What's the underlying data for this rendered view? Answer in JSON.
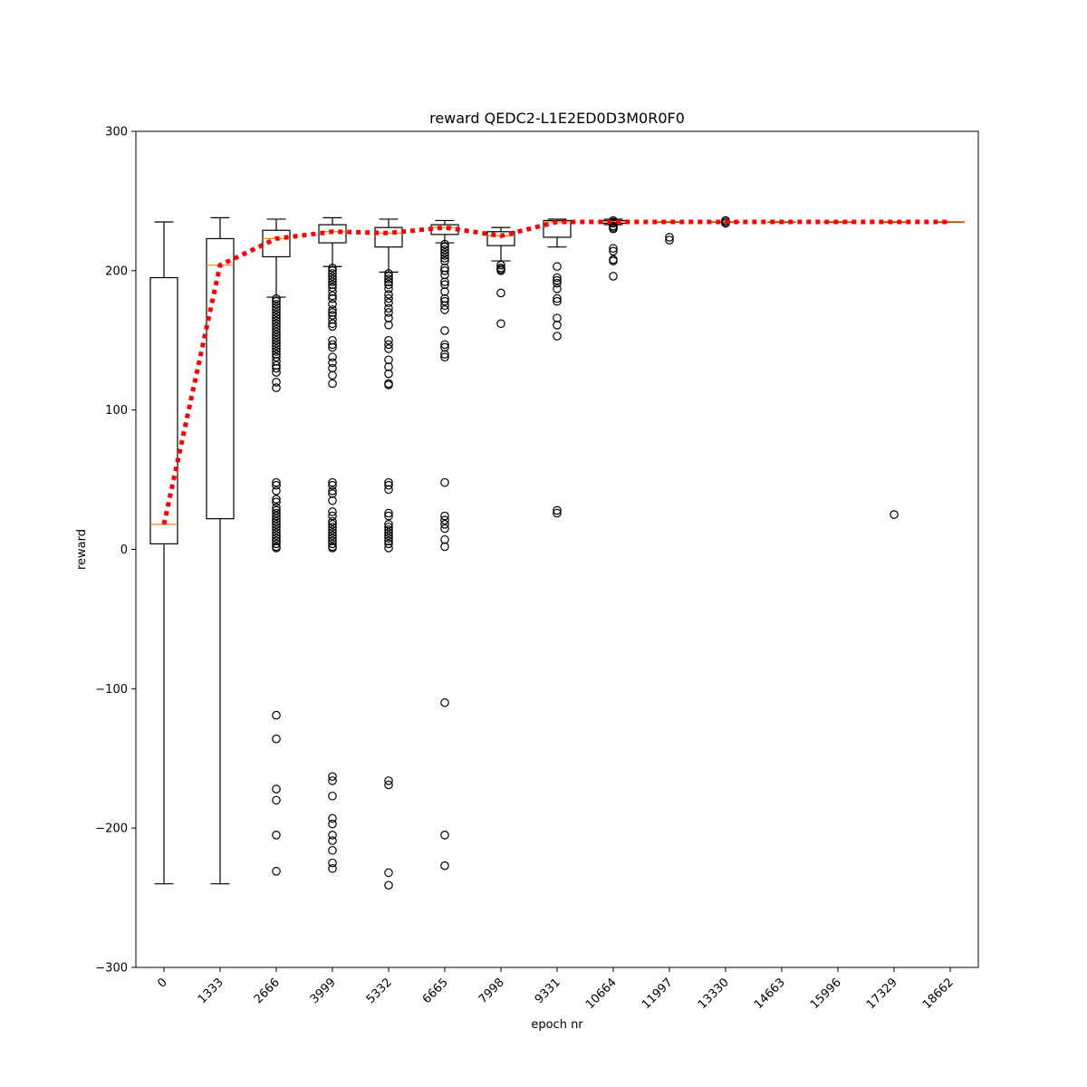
{
  "chart_data": {
    "type": "box",
    "title": "reward QEDC2-L1E2ED0D3M0R0F0",
    "xlabel": "epoch nr",
    "ylabel": "reward",
    "ylim": [
      -300,
      300
    ],
    "yticks": [
      -300,
      -200,
      -100,
      0,
      100,
      200,
      300
    ],
    "ytick_labels": [
      "−300",
      "−200",
      "−100",
      "0",
      "100",
      "200",
      "300"
    ],
    "categories": [
      "0",
      "1333",
      "2666",
      "3999",
      "5332",
      "6665",
      "7998",
      "9331",
      "10664",
      "11997",
      "13330",
      "14663",
      "15996",
      "17329",
      "18662"
    ],
    "boxes": [
      {
        "q1": 4,
        "median": 18,
        "q3": 195,
        "whisker_low": -240,
        "whisker_high": 235,
        "outliers": []
      },
      {
        "q1": 22,
        "median": 204,
        "q3": 223,
        "whisker_low": -240,
        "whisker_high": 238,
        "outliers": []
      },
      {
        "q1": 210,
        "median": 223,
        "q3": 229,
        "whisker_low": 181,
        "whisker_high": 237,
        "outliers": [
          180,
          178,
          176,
          174,
          172,
          170,
          168,
          166,
          164,
          162,
          160,
          158,
          156,
          154,
          152,
          150,
          148,
          146,
          144,
          142,
          140,
          138,
          135,
          132,
          130,
          127,
          120,
          116,
          48,
          46,
          42,
          36,
          34,
          30,
          28,
          26,
          24,
          22,
          20,
          18,
          16,
          14,
          12,
          10,
          8,
          6,
          4,
          2,
          1,
          -119,
          -136,
          -172,
          -180,
          -205,
          -231
        ]
      },
      {
        "q1": 220,
        "median": 228,
        "q3": 233,
        "whisker_low": 203,
        "whisker_high": 238,
        "outliers": [
          202,
          200,
          198,
          196,
          194,
          192,
          190,
          188,
          185,
          182,
          180,
          176,
          172,
          170,
          168,
          165,
          162,
          160,
          150,
          147,
          145,
          138,
          134,
          130,
          125,
          119,
          48,
          46,
          42,
          40,
          35,
          27,
          24,
          20,
          18,
          16,
          14,
          12,
          10,
          8,
          6,
          4,
          2,
          1,
          -163,
          -166,
          -177,
          -193,
          -197,
          -205,
          -209,
          -216,
          -225,
          -229
        ]
      },
      {
        "q1": 217,
        "median": 227,
        "q3": 231,
        "whisker_low": 199,
        "whisker_high": 237,
        "outliers": [
          198,
          196,
          194,
          192,
          190,
          187,
          183,
          180,
          177,
          173,
          170,
          166,
          161,
          150,
          147,
          144,
          136,
          131,
          126,
          119,
          118,
          48,
          46,
          43,
          26,
          24,
          18,
          16,
          14,
          12,
          10,
          8,
          6,
          4,
          1,
          -166,
          -169,
          -232,
          -241
        ]
      },
      {
        "q1": 226,
        "median": 231,
        "q3": 233,
        "whisker_low": 220,
        "whisker_high": 236,
        "outliers": [
          219,
          217,
          215,
          213,
          211,
          209,
          207,
          202,
          200,
          197,
          192,
          190,
          185,
          180,
          178,
          175,
          172,
          157,
          147,
          145,
          140,
          138,
          48,
          24,
          21,
          18,
          15,
          7,
          2,
          -110,
          -205,
          -227
        ]
      },
      {
        "q1": 218,
        "median": 225,
        "q3": 228,
        "whisker_low": 207,
        "whisker_high": 231,
        "outliers": [
          204,
          202,
          201,
          200,
          184,
          162
        ]
      },
      {
        "q1": 224,
        "median": 235,
        "q3": 236,
        "whisker_low": 217,
        "whisker_high": 237,
        "outliers": [
          203,
          195,
          193,
          191,
          187,
          180,
          178,
          166,
          161,
          153,
          28,
          26
        ]
      },
      {
        "q1": 234,
        "median": 235,
        "q3": 236,
        "whisker_low": 233,
        "whisker_high": 237,
        "outliers": [
          236,
          235,
          234,
          232,
          231,
          230,
          216,
          214,
          208,
          207,
          196
        ]
      },
      {
        "q1": 235,
        "median": 235,
        "q3": 235,
        "whisker_low": 235,
        "whisker_high": 235,
        "outliers": [
          224,
          222
        ]
      },
      {
        "q1": 235,
        "median": 235,
        "q3": 235,
        "whisker_low": 235,
        "whisker_high": 235,
        "outliers": [
          236,
          235,
          234
        ]
      },
      {
        "q1": 235,
        "median": 235,
        "q3": 235,
        "whisker_low": 235,
        "whisker_high": 235,
        "outliers": []
      },
      {
        "q1": 235,
        "median": 235,
        "q3": 235,
        "whisker_low": 235,
        "whisker_high": 235,
        "outliers": []
      },
      {
        "q1": 235,
        "median": 235,
        "q3": 235,
        "whisker_low": 235,
        "whisker_high": 235,
        "outliers": [
          25
        ]
      },
      {
        "q1": 235,
        "median": 235,
        "q3": 235,
        "whisker_low": 235,
        "whisker_high": 235,
        "outliers": []
      }
    ],
    "mean_line": {
      "values": [
        18,
        204,
        223,
        228,
        227,
        231,
        225,
        235,
        235,
        235,
        235,
        235,
        235,
        235,
        235
      ],
      "color": "#ff0000",
      "style": "dotted"
    },
    "colors": {
      "box": "#000000",
      "median": "#ff7f0e",
      "mean_line": "#ff0000"
    },
    "grid": false,
    "legend": "none"
  }
}
